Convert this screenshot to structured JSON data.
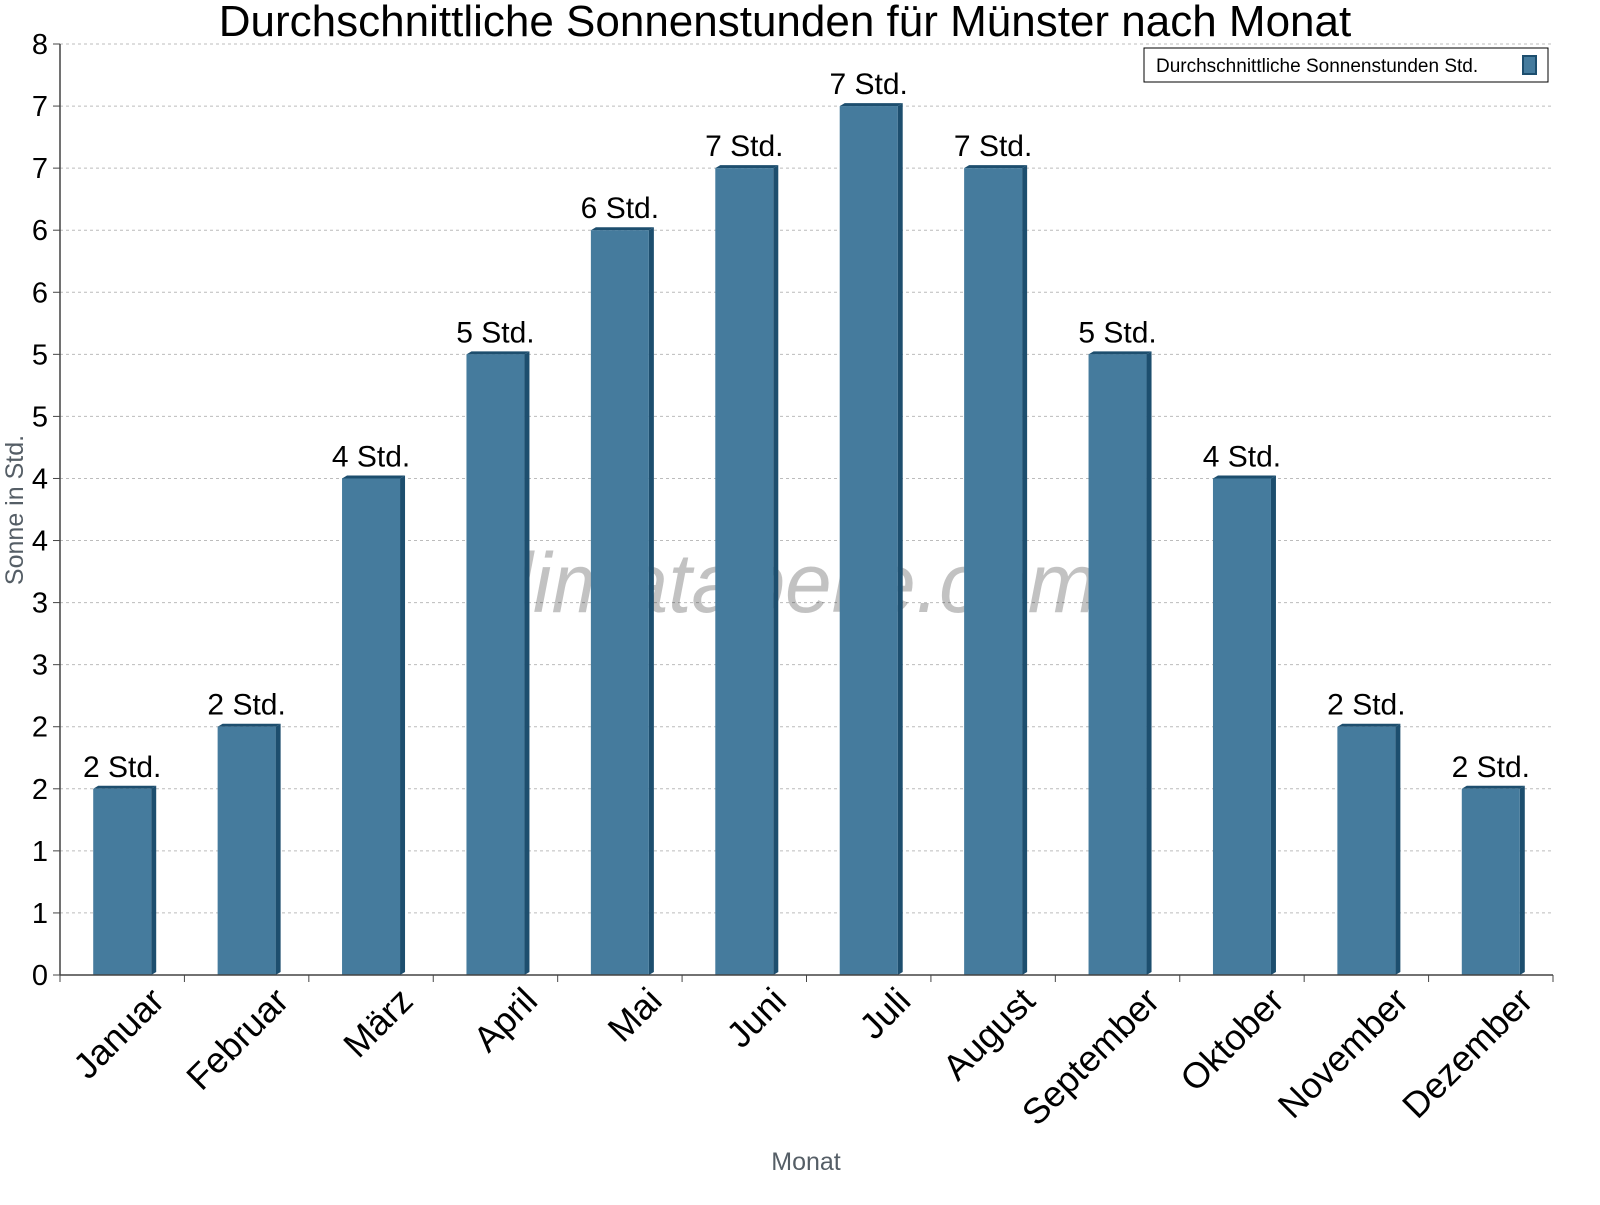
{
  "chart_data": {
    "type": "bar",
    "title": "Durchschnittliche Sonnenstunden für Münster nach Monat",
    "xlabel": "Monat",
    "ylabel": "Sonne in Std.",
    "categories": [
      "Januar",
      "Februar",
      "März",
      "April",
      "Mai",
      "Juni",
      "Juli",
      "August",
      "September",
      "Oktober",
      "November",
      "Dezember"
    ],
    "series": [
      {
        "name": "Durchschnittliche Sonnenstunden Std.",
        "values": [
          1.5,
          2.0,
          4.0,
          5.0,
          6.0,
          6.5,
          7.0,
          6.5,
          5.0,
          4.0,
          2.0,
          1.5
        ],
        "data_labels": [
          "2 Std.",
          "2 Std.",
          "4 Std.",
          "5 Std.",
          "6 Std.",
          "7 Std.",
          "7 Std.",
          "7 Std.",
          "5 Std.",
          "4 Std.",
          "2 Std.",
          "2 Std."
        ]
      }
    ],
    "ylim": [
      0,
      7.5
    ],
    "yticks": [
      0,
      0.5,
      1,
      1.5,
      2,
      2.5,
      3,
      3.5,
      4,
      4.5,
      5,
      5.5,
      6,
      6.5,
      7,
      7.5
    ],
    "ytick_labels": [
      "0",
      "1",
      "1",
      "2",
      "2",
      "3",
      "3",
      "4",
      "4",
      "5",
      "5",
      "6",
      "6",
      "7",
      "7",
      "8"
    ],
    "grid": true,
    "legend_position": "top-right",
    "bar_color": "#457b9d",
    "bar_edge_color": "#1d4e6e",
    "watermark": "klimatabelle.com"
  }
}
